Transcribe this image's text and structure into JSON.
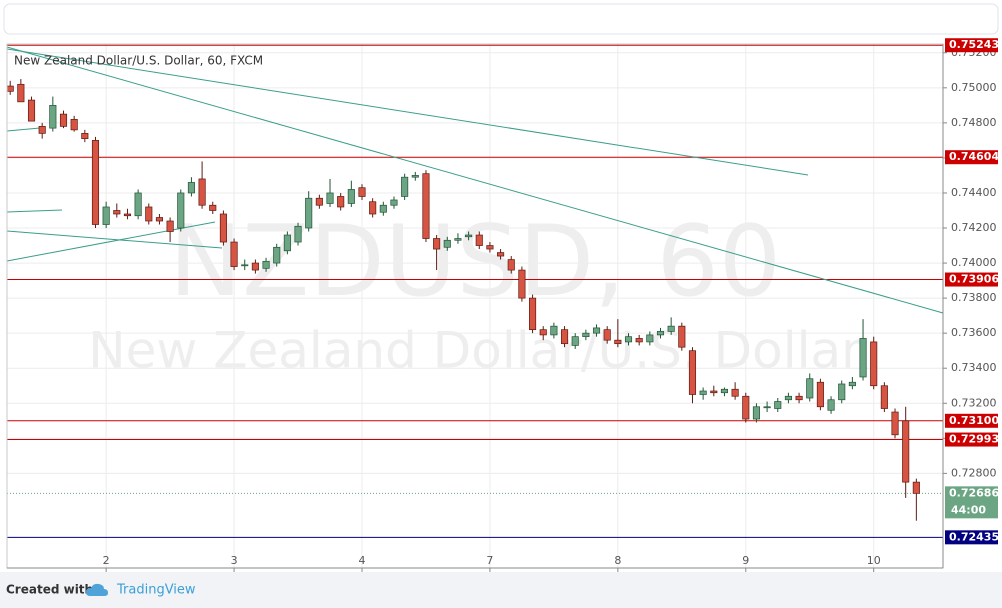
{
  "chart_data": {
    "type": "candlestick",
    "title": "New Zealand Dollar/U.S. Dollar, 60, FXCM",
    "watermark": "NZDUSD, 60",
    "watermark_subtitle": "New Zealand Dollar/U.S. Dollar",
    "up_color": "#6ba583",
    "down_color": "#d75442",
    "open": [
      0.7501,
      0.7502,
      0.7493,
      0.7478,
      0.7477,
      0.7485,
      0.7482,
      0.7474,
      0.747,
      0.7422,
      0.743,
      0.7428,
      0.7427,
      0.7432,
      0.7426,
      0.7424,
      0.742,
      0.744,
      0.7448,
      0.7433,
      0.7428,
      0.7412,
      0.7399,
      0.74,
      0.7397,
      0.74,
      0.7407,
      0.7412,
      0.742,
      0.7437,
      0.7434,
      0.7438,
      0.7434,
      0.7443,
      0.7435,
      0.7429,
      0.7433,
      0.7438,
      0.7449,
      0.7451,
      0.7414,
      0.7409,
      0.7413,
      0.7415,
      0.7416,
      0.741,
      0.7406,
      0.7402,
      0.7396,
      0.738,
      0.7362,
      0.7359,
      0.7362,
      0.7353,
      0.7358,
      0.736,
      0.7362,
      0.7356,
      0.7355,
      0.7357,
      0.7355,
      0.7359,
      0.7361,
      0.7364,
      0.735,
      0.7325,
      0.7327,
      0.7326,
      0.7328,
      0.7324,
      0.7311,
      0.7318,
      0.7317,
      0.7322,
      0.7324,
      0.7323,
      0.7332,
      0.7316,
      0.7322,
      0.733,
      0.7335,
      0.7355,
      0.733,
      0.7315,
      0.731,
      0.7275
    ],
    "high": [
      0.7504,
      0.7505,
      0.7495,
      0.748,
      0.7495,
      0.7487,
      0.7484,
      0.7476,
      0.7472,
      0.7435,
      0.7434,
      0.7431,
      0.7442,
      0.7434,
      0.7428,
      0.7426,
      0.7442,
      0.7449,
      0.7458,
      0.7435,
      0.743,
      0.7414,
      0.7402,
      0.7402,
      0.7403,
      0.7411,
      0.7418,
      0.7423,
      0.7441,
      0.7439,
      0.7448,
      0.744,
      0.7447,
      0.7445,
      0.7437,
      0.7435,
      0.7438,
      0.7451,
      0.7452,
      0.7453,
      0.7416,
      0.7415,
      0.7417,
      0.7418,
      0.7418,
      0.7412,
      0.7408,
      0.7404,
      0.7398,
      0.7382,
      0.7364,
      0.7366,
      0.7364,
      0.736,
      0.7362,
      0.7365,
      0.7364,
      0.7368,
      0.736,
      0.7359,
      0.7361,
      0.7363,
      0.7369,
      0.7366,
      0.7352,
      0.7329,
      0.733,
      0.7329,
      0.7332,
      0.7326,
      0.732,
      0.7321,
      0.7323,
      0.7326,
      0.7326,
      0.7337,
      0.7334,
      0.7324,
      0.7333,
      0.7335,
      0.7368,
      0.7358,
      0.7332,
      0.7317,
      0.7318,
      0.7277
    ],
    "low": [
      0.7496,
      0.7492,
      0.7481,
      0.7471,
      0.7475,
      0.7477,
      0.7475,
      0.7469,
      0.742,
      0.742,
      0.7426,
      0.7425,
      0.7425,
      0.7422,
      0.7422,
      0.7412,
      0.7418,
      0.7438,
      0.7431,
      0.7428,
      0.741,
      0.7396,
      0.7396,
      0.7394,
      0.7395,
      0.7398,
      0.7405,
      0.741,
      0.7418,
      0.7431,
      0.7432,
      0.743,
      0.7432,
      0.7436,
      0.7426,
      0.7427,
      0.7431,
      0.7436,
      0.7447,
      0.7412,
      0.7396,
      0.7407,
      0.7411,
      0.7413,
      0.7408,
      0.7406,
      0.7402,
      0.7394,
      0.7378,
      0.736,
      0.7356,
      0.7357,
      0.7352,
      0.7351,
      0.7356,
      0.7358,
      0.7354,
      0.7352,
      0.7353,
      0.7353,
      0.7353,
      0.7357,
      0.7359,
      0.735,
      0.732,
      0.7322,
      0.7324,
      0.7324,
      0.7322,
      0.7309,
      0.7309,
      0.7315,
      0.7315,
      0.732,
      0.732,
      0.7321,
      0.7316,
      0.7314,
      0.732,
      0.7328,
      0.7333,
      0.7328,
      0.7315,
      0.73,
      0.7266,
      0.7253
    ],
    "close": [
      0.7498,
      0.7492,
      0.7481,
      0.7474,
      0.749,
      0.7478,
      0.7476,
      0.7471,
      0.7422,
      0.7432,
      0.7428,
      0.7427,
      0.744,
      0.7424,
      0.7424,
      0.7418,
      0.744,
      0.7446,
      0.7433,
      0.743,
      0.7412,
      0.7398,
      0.7399,
      0.7396,
      0.7401,
      0.7409,
      0.7416,
      0.7421,
      0.7437,
      0.7433,
      0.744,
      0.7432,
      0.7442,
      0.7438,
      0.7428,
      0.7433,
      0.7436,
      0.7449,
      0.745,
      0.7414,
      0.7408,
      0.7413,
      0.7414,
      0.7416,
      0.741,
      0.7408,
      0.7404,
      0.7396,
      0.738,
      0.7362,
      0.7359,
      0.7364,
      0.7354,
      0.7358,
      0.736,
      0.7363,
      0.7356,
      0.7354,
      0.7358,
      0.7355,
      0.7359,
      0.7361,
      0.7364,
      0.7352,
      0.7325,
      0.7327,
      0.7326,
      0.7328,
      0.7324,
      0.7311,
      0.7318,
      0.7318,
      0.7321,
      0.7324,
      0.7322,
      0.7334,
      0.7318,
      0.7322,
      0.7331,
      0.7332,
      0.7357,
      0.733,
      0.7317,
      0.7302,
      0.7275,
      0.72686
    ],
    "xlim": [
      -0.3,
      87.5
    ],
    "xticks": [
      {
        "value": 9,
        "label": "2"
      },
      {
        "value": 21,
        "label": "3"
      },
      {
        "value": 33,
        "label": "4"
      },
      {
        "value": 45,
        "label": "7"
      },
      {
        "value": 57,
        "label": "8"
      },
      {
        "value": 69,
        "label": "9"
      },
      {
        "value": 81,
        "label": "10"
      }
    ],
    "ylim": [
      0.7226,
      0.7525
    ],
    "yticks": [
      {
        "value": 0.752,
        "label": "0.75200"
      },
      {
        "value": 0.75,
        "label": "0.75000"
      },
      {
        "value": 0.748,
        "label": "0.74800"
      },
      {
        "value": 0.746,
        "label": "0.74600"
      },
      {
        "value": 0.744,
        "label": "0.74400"
      },
      {
        "value": 0.742,
        "label": "0.74200"
      },
      {
        "value": 0.74,
        "label": "0.74000"
      },
      {
        "value": 0.738,
        "label": "0.73800"
      },
      {
        "value": 0.736,
        "label": "0.73600"
      },
      {
        "value": 0.734,
        "label": "0.73400"
      },
      {
        "value": 0.732,
        "label": "0.73200"
      },
      {
        "value": 0.73,
        "label": "0.73000"
      },
      {
        "value": 0.728,
        "label": "0.72800"
      }
    ],
    "grid": true,
    "levels": [
      {
        "value": 0.75243,
        "color": "#cc0000"
      },
      {
        "value": 0.74604,
        "color": "#cc0000"
      },
      {
        "value": 0.73906,
        "color": "#cc0000"
      },
      {
        "value": 0.731,
        "label": "0.73100",
        "color": "#cc0000"
      },
      {
        "value": 0.72993,
        "color": "#cc0000"
      },
      {
        "value": 0.72435,
        "color": "#000080"
      }
    ],
    "last_price": 0.72686,
    "countdown": "44:00"
  },
  "footer": {
    "prefix": "Created with",
    "brand": "TradingView"
  }
}
